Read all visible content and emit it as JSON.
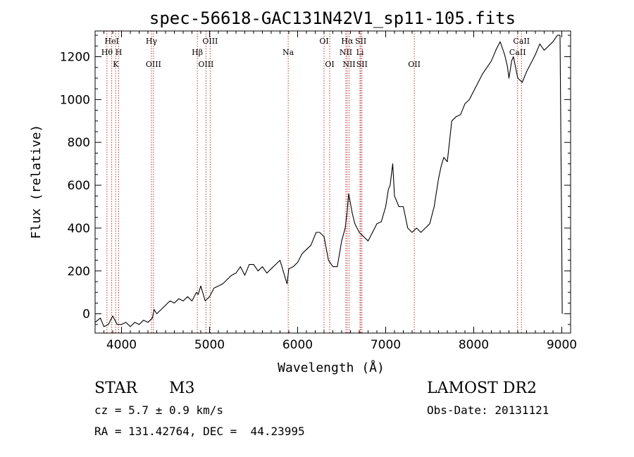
{
  "chart_data": {
    "type": "line",
    "title": "spec-56618-GAC131N42V1_sp11-105.fits",
    "xlabel": "Wavelength (Å)",
    "ylabel": "Flux (relative)",
    "xlim": [
      3700,
      9100
    ],
    "ylim": [
      -90,
      1320
    ],
    "x_ticks": [
      4000,
      5000,
      6000,
      7000,
      8000,
      9000
    ],
    "y_ticks": [
      0,
      200,
      400,
      600,
      800,
      1000,
      1200
    ],
    "grid": false,
    "series": [
      {
        "color": "#000000",
        "x": [
          3700,
          3760,
          3800,
          3850,
          3900,
          3950,
          4000,
          4050,
          4100,
          4150,
          4200,
          4250,
          4300,
          4350,
          4370,
          4400,
          4450,
          4500,
          4550,
          4600,
          4650,
          4700,
          4750,
          4800,
          4850,
          4870,
          4900,
          4950,
          5000,
          5050,
          5100,
          5150,
          5200,
          5250,
          5300,
          5350,
          5400,
          5450,
          5500,
          5550,
          5600,
          5650,
          5700,
          5750,
          5800,
          5850,
          5880,
          5900,
          5950,
          6000,
          6050,
          6100,
          6150,
          6190,
          6210,
          6250,
          6300,
          6350,
          6400,
          6450,
          6500,
          6540,
          6563,
          6580,
          6620,
          6650,
          6700,
          6750,
          6800,
          6850,
          6900,
          6950,
          7000,
          7030,
          7050,
          7080,
          7100,
          7150,
          7200,
          7250,
          7300,
          7350,
          7400,
          7450,
          7500,
          7550,
          7600,
          7630,
          7660,
          7680,
          7700,
          7750,
          7800,
          7850,
          7900,
          7950,
          8000,
          8050,
          8100,
          8150,
          8200,
          8250,
          8300,
          8350,
          8380,
          8400,
          8430,
          8450,
          8500,
          8550,
          8600,
          8650,
          8700,
          8750,
          8800,
          8850,
          8900,
          8950,
          8980,
          9000,
          9005
        ],
        "y": [
          -40,
          -20,
          -60,
          -50,
          -10,
          -50,
          -50,
          -40,
          -60,
          -40,
          -50,
          -30,
          -40,
          -20,
          20,
          0,
          20,
          40,
          60,
          50,
          70,
          60,
          80,
          60,
          100,
          90,
          130,
          60,
          80,
          120,
          130,
          140,
          160,
          180,
          190,
          220,
          180,
          230,
          230,
          200,
          220,
          190,
          210,
          230,
          250,
          180,
          140,
          210,
          220,
          240,
          280,
          300,
          320,
          360,
          380,
          380,
          360,
          250,
          220,
          220,
          340,
          400,
          480,
          560,
          470,
          420,
          380,
          360,
          340,
          380,
          420,
          430,
          500,
          580,
          600,
          700,
          550,
          500,
          500,
          400,
          380,
          400,
          380,
          400,
          420,
          500,
          630,
          690,
          730,
          720,
          710,
          900,
          920,
          930,
          980,
          1000,
          1040,
          1080,
          1120,
          1150,
          1180,
          1230,
          1270,
          1210,
          1160,
          1100,
          1180,
          1200,
          1100,
          1080,
          1130,
          1170,
          1210,
          1260,
          1230,
          1250,
          1270,
          1300,
          1300,
          300,
          0
        ]
      }
    ],
    "lines": {
      "top": [
        {
          "x": 3889,
          "label": "HeI"
        },
        {
          "x": 4340,
          "label": "Hγ"
        },
        {
          "x": 5007,
          "label": "OIII"
        },
        {
          "x": 6300,
          "label": "OI"
        },
        {
          "x": 6563,
          "label": "Hα"
        },
        {
          "x": 6717,
          "label": "SII"
        },
        {
          "x": 8542,
          "label": "CaII"
        }
      ],
      "middle": [
        {
          "x": 3835,
          "label": "Hθ"
        },
        {
          "x": 3968,
          "label": "H"
        },
        {
          "x": 4861,
          "label": "Hβ"
        },
        {
          "x": 5893,
          "label": "Na"
        },
        {
          "x": 6548,
          "label": "NII"
        },
        {
          "x": 6708,
          "label": "Li"
        },
        {
          "x": 8498,
          "label": "CaII"
        }
      ],
      "bottom": [
        {
          "x": 3934,
          "label": "K"
        },
        {
          "x": 4363,
          "label": "OIII"
        },
        {
          "x": 4959,
          "label": "OIII"
        },
        {
          "x": 6364,
          "label": "OI"
        },
        {
          "x": 6584,
          "label": "NII"
        },
        {
          "x": 6731,
          "label": "SII"
        },
        {
          "x": 7325,
          "label": "OII"
        }
      ]
    }
  },
  "info": {
    "object_class": "STAR",
    "subclass": "M3",
    "survey": "LAMOST DR2",
    "cz": "cz = 5.7 ± 0.9 km/s",
    "obs_date": "Obs-Date: 20131121",
    "coords": "RA = 131.42764, DEC =  44.23995"
  }
}
